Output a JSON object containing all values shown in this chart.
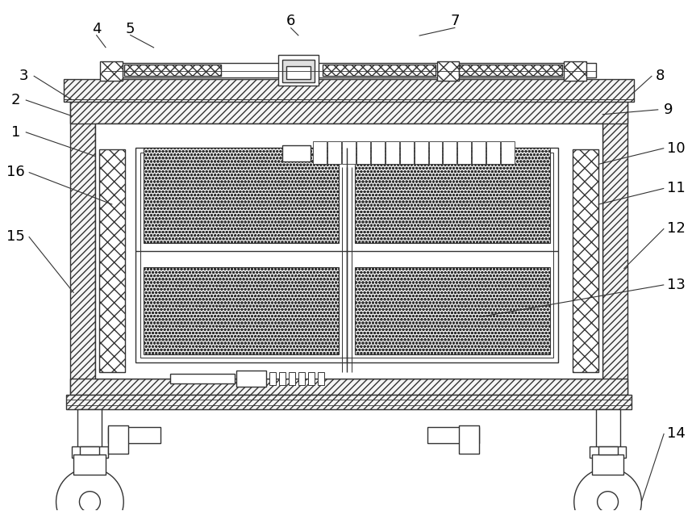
{
  "bg_color": "#ffffff",
  "line_color": "#333333",
  "figsize": [
    8.58,
    6.33
  ],
  "dpi": 100,
  "label_fs": 13,
  "label_color": "#000000"
}
